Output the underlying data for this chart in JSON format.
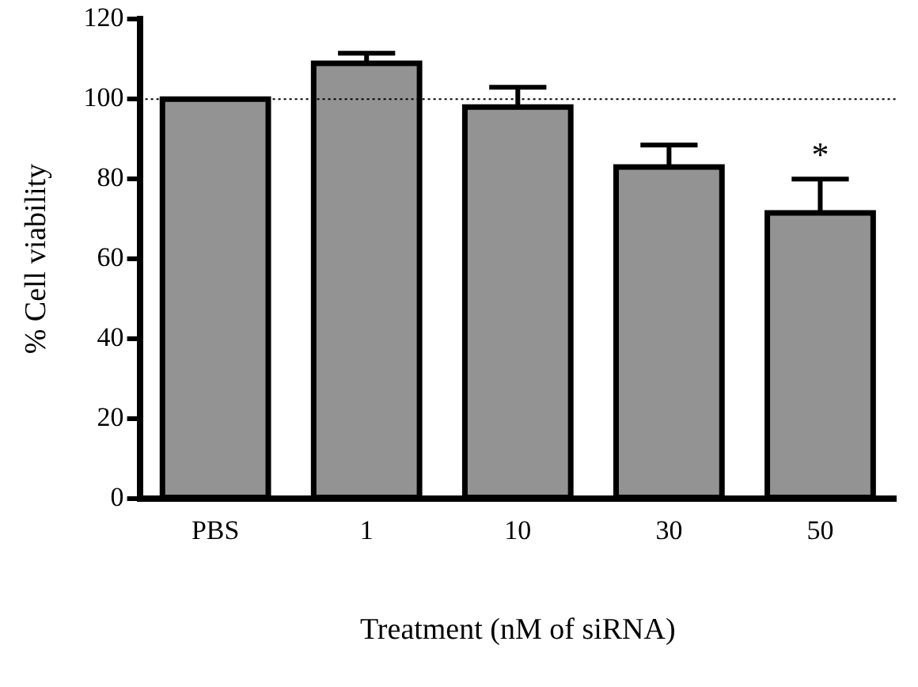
{
  "chart_data": {
    "type": "bar",
    "xlabel": "Treatment (nM of siRNA)",
    "ylabel": "% Cell viability",
    "categories": [
      "PBS",
      "1",
      "10",
      "30",
      "50"
    ],
    "values": [
      100,
      109,
      98,
      83,
      71.5
    ],
    "errors": [
      null,
      2.5,
      5,
      5.5,
      8.5
    ],
    "color": "#939393",
    "ylim": [
      0,
      120
    ],
    "yticks": [
      0,
      20,
      40,
      60,
      80,
      100,
      120
    ],
    "grid": false,
    "legend": false,
    "ref_lines": [
      {
        "axis": "y",
        "value": 100,
        "line_style": "dotted"
      }
    ],
    "annotations": [
      "*"
    ]
  }
}
